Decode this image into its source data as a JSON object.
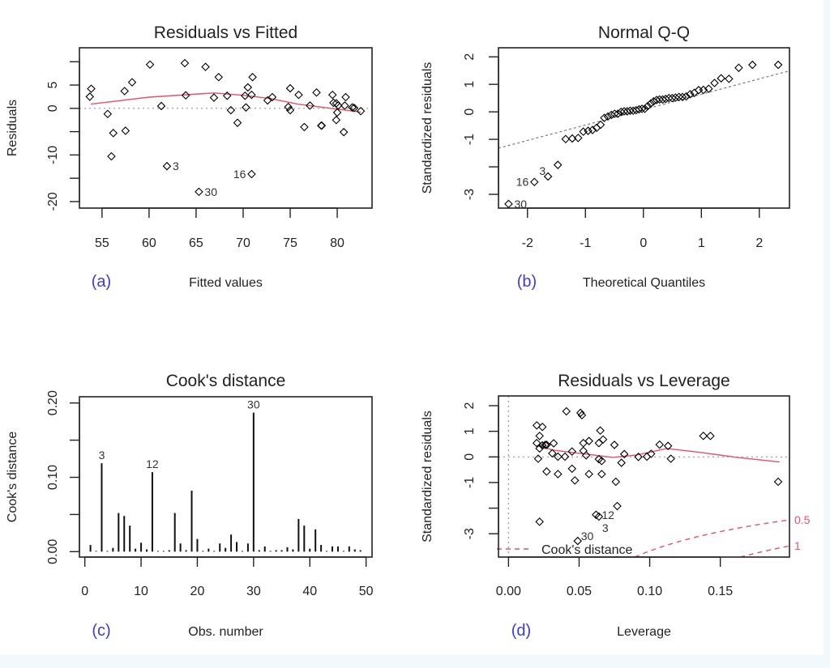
{
  "colors": {
    "points": "#000000",
    "smooth": "#df536b",
    "reference": "#999999",
    "letter": "#3b3bdc",
    "background": "#f2f9fd"
  },
  "chart_data": [
    {
      "id": "a",
      "type": "scatter",
      "letter": "(a)",
      "title": "Residuals vs Fitted",
      "xlabel": "Fitted values",
      "ylabel": "Residuals",
      "xlim": [
        52.6,
        83.7
      ],
      "ylim": [
        -21.4,
        13.0
      ],
      "xticks": [
        55,
        60,
        65,
        70,
        75,
        80
      ],
      "xticklabels": [
        "55",
        "60",
        "65",
        "70",
        "75",
        "80"
      ],
      "yticks": [
        -20,
        -15,
        -10,
        -5,
        0,
        5,
        10
      ],
      "yticklabels": [
        "-20",
        "",
        "-10",
        "",
        "0",
        "5",
        ""
      ],
      "hline": 0,
      "points": [
        [
          53.85,
          4.2
        ],
        [
          53.7,
          2.5
        ],
        [
          55.6,
          -1.2
        ],
        [
          56.2,
          -5.3
        ],
        [
          56.0,
          -10.3
        ],
        [
          57.4,
          3.7
        ],
        [
          57.5,
          -4.8
        ],
        [
          58.2,
          5.6
        ],
        [
          60.1,
          9.4
        ],
        [
          61.3,
          0.5
        ],
        [
          61.9,
          -12.4
        ],
        [
          63.8,
          9.7
        ],
        [
          63.9,
          2.8
        ],
        [
          65.3,
          -17.9
        ],
        [
          66.0,
          8.9
        ],
        [
          66.9,
          2.3
        ],
        [
          67.4,
          6.7
        ],
        [
          68.3,
          2.7
        ],
        [
          68.7,
          -0.4
        ],
        [
          69.4,
          -3.1
        ],
        [
          70.2,
          2.7
        ],
        [
          70.3,
          0.2
        ],
        [
          70.5,
          4.5
        ],
        [
          70.9,
          2.9
        ],
        [
          71.0,
          6.7
        ],
        [
          70.9,
          -14.1
        ],
        [
          72.6,
          1.7
        ],
        [
          73.1,
          2.4
        ],
        [
          75.0,
          4.3
        ],
        [
          74.8,
          0.3
        ],
        [
          75.0,
          -0.4
        ],
        [
          75.9,
          2.9
        ],
        [
          76.5,
          -4.0
        ],
        [
          77.1,
          0.6
        ],
        [
          77.8,
          3.4
        ],
        [
          78.3,
          -3.7
        ],
        [
          78.35,
          -3.7
        ],
        [
          79.5,
          2.9
        ],
        [
          79.6,
          1.2
        ],
        [
          79.9,
          1.1
        ],
        [
          80.1,
          0.6
        ],
        [
          80.0,
          -0.9
        ],
        [
          79.9,
          -2.5
        ],
        [
          80.7,
          -5.1
        ],
        [
          80.9,
          2.4
        ],
        [
          80.8,
          0.6
        ],
        [
          81.6,
          0.2
        ],
        [
          81.8,
          0.1
        ],
        [
          82.5,
          -0.6
        ]
      ],
      "smooth": [
        [
          53.8,
          0.9
        ],
        [
          60,
          2.4
        ],
        [
          66.9,
          3.3
        ],
        [
          70,
          2.8
        ],
        [
          72.9,
          2.1
        ],
        [
          75.8,
          0.9
        ],
        [
          78.6,
          0.2
        ],
        [
          82.5,
          -0.8
        ]
      ],
      "point_labels": [
        {
          "x": 61.9,
          "y": -12.4,
          "text": "3",
          "pos": "right"
        },
        {
          "x": 65.3,
          "y": -17.9,
          "text": "30",
          "pos": "right"
        },
        {
          "x": 70.9,
          "y": -14.1,
          "text": "16",
          "pos": "left"
        }
      ]
    },
    {
      "id": "b",
      "type": "scatter",
      "letter": "(b)",
      "title": "Normal Q-Q",
      "xlabel": "Theoretical Quantiles",
      "ylabel": "Standardized residuals",
      "xlim": [
        -2.5,
        2.52
      ],
      "ylim": [
        -3.5,
        2.33
      ],
      "xticks": [
        -2,
        -1,
        0,
        1,
        2
      ],
      "xticklabels": [
        "-2",
        "-1",
        "0",
        "1",
        "2"
      ],
      "yticks": [
        -3,
        -2,
        -1,
        0,
        1,
        2
      ],
      "yticklabels": [
        "-3",
        "",
        "-1",
        "0",
        "1",
        "2"
      ],
      "x": [
        -2.326,
        -1.881,
        -1.645,
        -1.476,
        -1.341,
        -1.227,
        -1.126,
        -1.036,
        -0.954,
        -0.878,
        -0.806,
        -0.739,
        -0.674,
        -0.613,
        -0.553,
        -0.496,
        -0.44,
        -0.385,
        -0.332,
        -0.279,
        -0.228,
        -0.176,
        -0.126,
        -0.075,
        -0.025,
        0.025,
        0.075,
        0.126,
        0.176,
        0.228,
        0.279,
        0.332,
        0.385,
        0.44,
        0.496,
        0.553,
        0.613,
        0.674,
        0.739,
        0.806,
        0.878,
        0.954,
        1.036,
        1.126,
        1.227,
        1.341,
        1.476,
        1.645,
        1.881,
        2.326
      ],
      "y": [
        -3.35,
        -2.55,
        -2.35,
        -1.93,
        -0.99,
        -0.97,
        -0.95,
        -0.72,
        -0.69,
        -0.66,
        -0.58,
        -0.47,
        -0.22,
        -0.17,
        -0.11,
        -0.07,
        -0.07,
        0.0,
        0.02,
        0.02,
        0.04,
        0.04,
        0.06,
        0.09,
        0.11,
        0.11,
        0.21,
        0.3,
        0.38,
        0.43,
        0.45,
        0.45,
        0.47,
        0.5,
        0.5,
        0.52,
        0.54,
        0.54,
        0.56,
        0.64,
        0.69,
        0.79,
        0.8,
        0.84,
        1.05,
        1.22,
        1.2,
        1.6,
        1.71,
        1.71
      ],
      "qqline": {
        "intercept": 0.08,
        "slope": 0.56
      },
      "point_labels": [
        {
          "index": 0,
          "text": "30",
          "pos": "right"
        },
        {
          "index": 1,
          "text": "16",
          "pos": "left"
        },
        {
          "index": 2,
          "text": "3",
          "pos": "top-left"
        }
      ]
    },
    {
      "id": "c",
      "type": "bar",
      "letter": "(c)",
      "title": "Cook's distance",
      "xlabel": "Obs. number",
      "ylabel": "Cook's distance",
      "xlim": [
        -0.96,
        51.06
      ],
      "ylim": [
        -0.0073,
        0.2084
      ],
      "xticks": [
        0,
        10,
        20,
        30,
        40,
        50
      ],
      "xticklabels": [
        "0",
        "10",
        "20",
        "30",
        "40",
        "50"
      ],
      "yticks": [
        0,
        0.05,
        0.1,
        0.15,
        0.2
      ],
      "yticklabels": [
        "0.00",
        "",
        "0.10",
        "",
        "0.20"
      ],
      "values": [
        0.009,
        0.001,
        0.119,
        0.001,
        0.005,
        0.052,
        0.048,
        0.035,
        0.004,
        0.012,
        0.003,
        0.107,
        0.001,
        0.001,
        0.002,
        0.052,
        0.011,
        0.002,
        0.082,
        0.017,
        0.001,
        0.004,
        0.001,
        0.011,
        0.005,
        0.023,
        0.013,
        0.001,
        0.011,
        0.187,
        0.002,
        0.007,
        0.001,
        0.002,
        0.002,
        0.006,
        0.003,
        0.044,
        0.035,
        0.004,
        0.03,
        0.009,
        0.001,
        0.007,
        0.007,
        0.001,
        0.007,
        0.003,
        0.002
      ],
      "bar_labels": [
        {
          "obs": 3,
          "text": "3"
        },
        {
          "obs": 12,
          "text": "12"
        },
        {
          "obs": 30,
          "text": "30"
        }
      ]
    },
    {
      "id": "d",
      "type": "scatter",
      "letter": "(d)",
      "title": "Residuals vs Leverage",
      "xlabel": "Leverage",
      "ylabel": "Standardized residuals",
      "xlim": [
        -0.0071,
        0.199
      ],
      "ylim": [
        -3.91,
        2.38
      ],
      "xticks": [
        0,
        0.05,
        0.1,
        0.15
      ],
      "xticklabels": [
        "0.00",
        "0.05",
        "0.10",
        "0.15"
      ],
      "yticks": [
        -3,
        -2,
        -1,
        0,
        1,
        2
      ],
      "yticklabels": [
        "-3",
        "",
        "-1",
        "0",
        "1",
        "2"
      ],
      "hline": 0,
      "vline": 0,
      "points": [
        [
          0.02,
          1.23
        ],
        [
          0.024,
          1.17
        ],
        [
          0.022,
          0.82
        ],
        [
          0.02,
          0.54
        ],
        [
          0.022,
          0.33
        ],
        [
          0.024,
          0.45
        ],
        [
          0.026,
          0.47
        ],
        [
          0.027,
          0.47
        ],
        [
          0.032,
          0.53
        ],
        [
          0.021,
          -0.07
        ],
        [
          0.031,
          0.14
        ],
        [
          0.035,
          0.01
        ],
        [
          0.04,
          0.01
        ],
        [
          0.045,
          0.21
        ],
        [
          0.041,
          1.78
        ],
        [
          0.051,
          1.72
        ],
        [
          0.052,
          1.63
        ],
        [
          0.027,
          -0.57
        ],
        [
          0.035,
          -0.67
        ],
        [
          0.045,
          -0.46
        ],
        [
          0.047,
          -0.92
        ],
        [
          0.053,
          0.54
        ],
        [
          0.053,
          0.24
        ],
        [
          0.055,
          0.06
        ],
        [
          0.057,
          0.62
        ],
        [
          0.057,
          -0.67
        ],
        [
          0.065,
          1.03
        ],
        [
          0.067,
          0.68
        ],
        [
          0.064,
          0.54
        ],
        [
          0.064,
          -0.09
        ],
        [
          0.066,
          -0.16
        ],
        [
          0.066,
          -0.67
        ],
        [
          0.075,
          0.47
        ],
        [
          0.076,
          -0.97
        ],
        [
          0.08,
          -0.23
        ],
        [
          0.082,
          0.11
        ],
        [
          0.092,
          0.0
        ],
        [
          0.098,
          0.01
        ],
        [
          0.101,
          0.12
        ],
        [
          0.107,
          0.48
        ],
        [
          0.113,
          0.43
        ],
        [
          0.115,
          -0.07
        ],
        [
          0.138,
          0.82
        ],
        [
          0.143,
          0.82
        ],
        [
          0.191,
          -0.97
        ],
        [
          0.077,
          -1.92
        ],
        [
          0.062,
          -2.26
        ],
        [
          0.064,
          -2.33
        ],
        [
          0.022,
          -2.53
        ],
        [
          0.049,
          -3.28
        ]
      ],
      "smooth": [
        [
          0.02,
          0.45
        ],
        [
          0.032,
          0.26
        ],
        [
          0.055,
          0.11
        ],
        [
          0.074,
          -0.02
        ],
        [
          0.091,
          0.08
        ],
        [
          0.112,
          0.33
        ],
        [
          0.134,
          0.19
        ],
        [
          0.162,
          -0.02
        ],
        [
          0.192,
          -0.2
        ]
      ],
      "point_labels": [
        {
          "x": 0.062,
          "y": -2.26,
          "text": "12",
          "pos": "right"
        },
        {
          "x": 0.064,
          "y": -2.33,
          "text": "3",
          "pos": "below-right"
        },
        {
          "x": 0.049,
          "y": -3.28,
          "text": "30",
          "pos": "below-right"
        }
      ],
      "cooks_levels": [
        {
          "level": 0.5,
          "text": "0.5"
        },
        {
          "level": 1,
          "text": "1"
        }
      ],
      "legend": {
        "text": "Cook's distance",
        "position": "bottom-left"
      }
    }
  ]
}
